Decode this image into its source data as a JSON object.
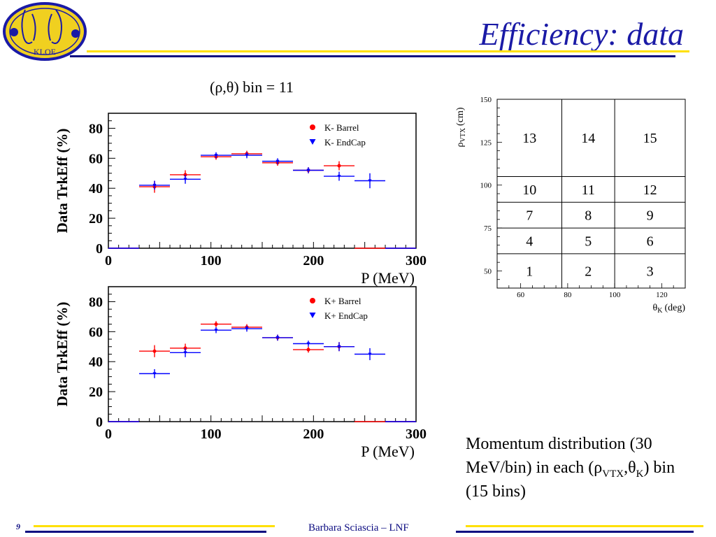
{
  "header": {
    "title": "Efficiency: data"
  },
  "logo": {
    "text": "KLOE"
  },
  "plot_title": "(ρ,θ) bin = 11",
  "chart_data": [
    {
      "type": "scatter",
      "panel": "top",
      "xlabel": "P (MeV)",
      "ylabel": "Data TrkEff (%)",
      "xlim": [
        0,
        300
      ],
      "ylim": [
        0,
        90
      ],
      "xticks": [
        "0",
        "100",
        "200",
        "300"
      ],
      "yticks": [
        "0",
        "20",
        "40",
        "60",
        "80"
      ],
      "legend_position": "top-right",
      "series": [
        {
          "name": "K- Barrel",
          "color": "#ff0000",
          "marker": "circle",
          "x": [
            15,
            45,
            75,
            105,
            135,
            165,
            195,
            225,
            255,
            285
          ],
          "xerr": 15,
          "y": [
            0,
            41,
            49,
            61,
            63,
            57,
            52,
            55,
            0,
            0
          ],
          "yerr": [
            0,
            4,
            3,
            2,
            2,
            2,
            2,
            3,
            0,
            0
          ]
        },
        {
          "name": "K- EndCap",
          "color": "#0000ff",
          "marker": "triangle-down",
          "x": [
            15,
            45,
            75,
            105,
            135,
            165,
            195,
            225,
            255,
            285
          ],
          "xerr": 15,
          "y": [
            0,
            42,
            46,
            62,
            62,
            58,
            52,
            48,
            45,
            0
          ],
          "yerr": [
            0,
            3,
            3,
            2,
            2,
            2,
            2,
            3,
            5,
            0
          ]
        }
      ]
    },
    {
      "type": "scatter",
      "panel": "bottom",
      "xlabel": "P (MeV)",
      "ylabel": "Data TrkEff (%)",
      "xlim": [
        0,
        300
      ],
      "ylim": [
        0,
        90
      ],
      "xticks": [
        "0",
        "100",
        "200",
        "300"
      ],
      "yticks": [
        "0",
        "20",
        "40",
        "60",
        "80"
      ],
      "legend_position": "top-right",
      "series": [
        {
          "name": "K+ Barrel",
          "color": "#ff0000",
          "marker": "circle",
          "x": [
            15,
            45,
            75,
            105,
            135,
            165,
            195,
            225,
            255,
            285
          ],
          "xerr": 15,
          "y": [
            0,
            47,
            49,
            65,
            63,
            56,
            48,
            50,
            0,
            0
          ],
          "yerr": [
            0,
            4,
            3,
            2,
            2,
            2,
            2,
            3,
            0,
            0
          ]
        },
        {
          "name": "K+ EndCap",
          "color": "#0000ff",
          "marker": "triangle-down",
          "x": [
            15,
            45,
            75,
            105,
            135,
            165,
            195,
            225,
            255,
            285
          ],
          "xerr": 15,
          "y": [
            0,
            32,
            46,
            61,
            62,
            56,
            52,
            50,
            45,
            0
          ],
          "yerr": [
            0,
            3,
            3,
            2,
            2,
            2,
            2,
            3,
            4,
            0
          ]
        }
      ]
    },
    {
      "type": "table",
      "panel": "bin-map",
      "xlabel_sym": "θ",
      "xlabel_sub": "K",
      "xlabel_unit": "(deg)",
      "ylabel_sym": "ρ",
      "ylabel_sub": "VTX",
      "ylabel_unit": "(cm)",
      "xlim": [
        50,
        130
      ],
      "ylim": [
        40,
        150
      ],
      "xticks": [
        60,
        80,
        100,
        120
      ],
      "yticks": [
        50,
        75,
        100,
        125,
        150
      ],
      "x_edges": [
        50,
        77.5,
        100,
        130
      ],
      "y_edges": [
        40,
        60,
        75,
        90,
        105,
        150
      ],
      "cells": [
        [
          "1",
          "2",
          "3"
        ],
        [
          "4",
          "5",
          "6"
        ],
        [
          "7",
          "8",
          "9"
        ],
        [
          "10",
          "11",
          "12"
        ],
        [
          "13",
          "14",
          "15"
        ]
      ]
    }
  ],
  "caption": {
    "text1": "Momentum distribution (30 MeV/bin) in each (",
    "rho": "ρ",
    "rho_sub": "VTX",
    "comma": ",",
    "theta": "θ",
    "theta_sub": "K",
    "text2": ") bin (15 bins)"
  },
  "footer": {
    "page": "9",
    "author": "Barbara Sciascia – LNF"
  }
}
